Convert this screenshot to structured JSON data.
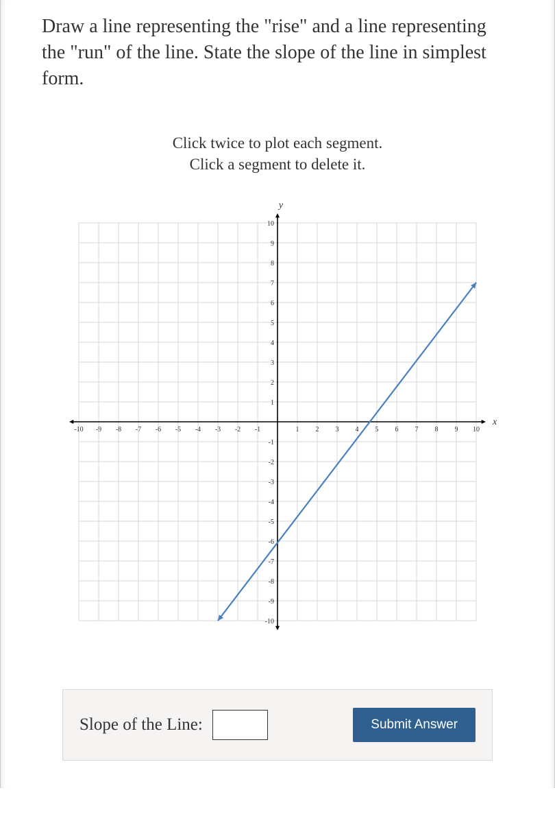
{
  "question": {
    "text": "Draw a line representing the \"rise\" and a line representing the \"run\" of the line. State the slope of the line in simplest form."
  },
  "instructions": {
    "line1": "Click twice to plot each segment.",
    "line2": "Click a segment to delete it."
  },
  "graph": {
    "type": "line",
    "x_axis_label": "x",
    "y_axis_label": "y",
    "xlim": [
      -10,
      10
    ],
    "ylim": [
      -10,
      10
    ],
    "tick_step": 1,
    "x_tick_labels": [
      "-10",
      "-9",
      "-8",
      "-7",
      "-6",
      "-5",
      "-4",
      "-3",
      "-2",
      "-1",
      "1",
      "2",
      "3",
      "4",
      "5",
      "6",
      "7",
      "8",
      "9",
      "10"
    ],
    "y_tick_labels": [
      "10",
      "9",
      "8",
      "7",
      "6",
      "5",
      "4",
      "3",
      "2",
      "1",
      "-1",
      "-2",
      "-3",
      "-4",
      "-5",
      "-6",
      "-7",
      "-8",
      "-9",
      "-10"
    ],
    "grid_color": "#d7d7d7",
    "axis_color": "#000000",
    "background_color": "#ffffff",
    "tick_fontsize": 10,
    "axis_label_fontsize": 14,
    "line": {
      "points": [
        [
          -3,
          -10
        ],
        [
          10,
          7
        ]
      ],
      "color": "#4a7fc0",
      "width": 2.2,
      "arrows": true
    }
  },
  "answer": {
    "label": "Slope of the Line:",
    "input_value": "",
    "submit_label": "Submit Answer"
  },
  "colors": {
    "text": "#333333",
    "button_bg": "#2f5f8f",
    "button_text": "#ffffff",
    "panel_bg": "#f6f3f3",
    "panel_border": "#d8d8d8"
  }
}
